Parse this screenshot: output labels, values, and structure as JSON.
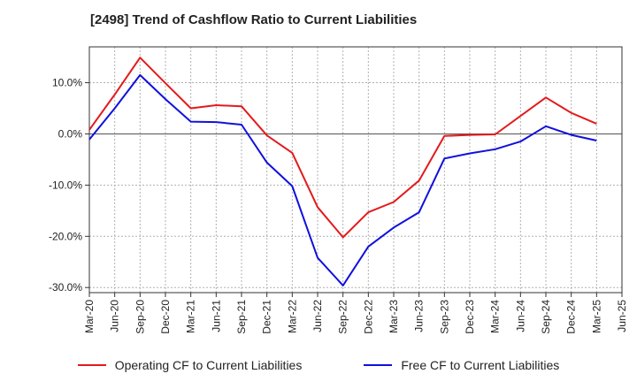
{
  "chart_data": {
    "type": "line",
    "title": "[2498]  Trend of Cashflow Ratio to Current Liabilities",
    "xlabel": "",
    "ylabel": "",
    "ylim": [
      -31,
      17
    ],
    "yticks": [
      {
        "value": 10,
        "label": "10.0%"
      },
      {
        "value": 0,
        "label": "0.0%"
      },
      {
        "value": -10,
        "label": "-10.0%"
      },
      {
        "value": -20,
        "label": "-20.0%"
      },
      {
        "value": -30,
        "label": "-30.0%"
      }
    ],
    "x_tick_labels": [
      "Mar-20",
      "Jun-20",
      "Sep-20",
      "Dec-20",
      "Mar-21",
      "Jun-21",
      "Sep-21",
      "Dec-21",
      "Mar-22",
      "Jun-22",
      "Sep-22",
      "Dec-22",
      "Mar-23",
      "Jun-23",
      "Sep-23",
      "Dec-23",
      "Mar-24",
      "Jun-24",
      "Sep-24",
      "Dec-24",
      "Mar-25",
      "Jun-25"
    ],
    "x": [
      "Mar-20",
      "Jun-20",
      "Sep-20",
      "Dec-20",
      "Mar-21",
      "Jun-21",
      "Sep-21",
      "Dec-21",
      "Mar-22",
      "Jun-22",
      "Sep-22",
      "Dec-22",
      "Mar-23",
      "Jun-23",
      "Sep-23",
      "Dec-23",
      "Mar-24",
      "Jun-24",
      "Sep-24",
      "Dec-24",
      "Mar-25"
    ],
    "grid": true,
    "legend_position": "bottom",
    "series": [
      {
        "name": "Operating CF to Current Liabilities",
        "color": "#e31a1c",
        "values": [
          0.8,
          7.7,
          14.9,
          9.9,
          5.0,
          5.6,
          5.4,
          -0.3,
          -3.7,
          -14.3,
          -20.2,
          -15.3,
          -13.3,
          -9.1,
          -0.4,
          -0.2,
          -0.1,
          3.5,
          7.1,
          4.1,
          2.0
        ]
      },
      {
        "name": "Free CF to Current Liabilities",
        "color": "#1010dd",
        "values": [
          -1.1,
          5.0,
          11.5,
          6.8,
          2.4,
          2.3,
          1.8,
          -5.6,
          -10.2,
          -24.2,
          -29.6,
          -22.0,
          -18.3,
          -15.3,
          -4.8,
          -3.8,
          -3.0,
          -1.5,
          1.5,
          -0.2,
          -1.3
        ]
      }
    ]
  }
}
